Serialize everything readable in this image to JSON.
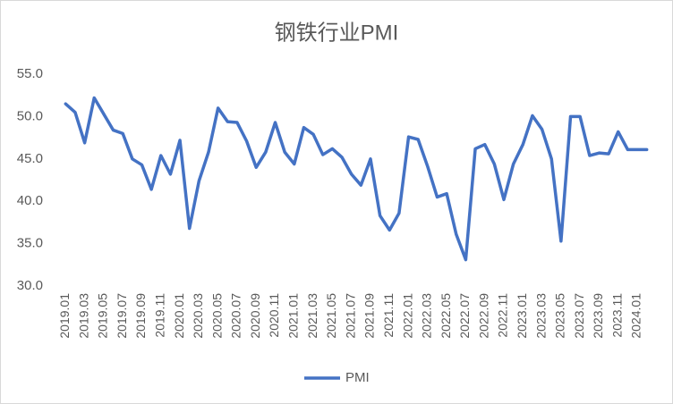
{
  "chart_data": {
    "type": "line",
    "title": "钢铁行业PMI",
    "categories": [
      "2019.01",
      null,
      "2019.03",
      null,
      "2019.05",
      null,
      "2019.07",
      null,
      "2019.09",
      null,
      "2019.11",
      null,
      "2020.01",
      null,
      "2020.03",
      null,
      "2020.05",
      null,
      "2020.07",
      null,
      "2020.09",
      null,
      "2020.11",
      null,
      "2021.01",
      null,
      "2021.03",
      null,
      "2021.05",
      null,
      "2021.07",
      null,
      "2021.09",
      null,
      "2021.11",
      null,
      "2022.01",
      null,
      "2022.03",
      null,
      "2022.05",
      null,
      "2022.07",
      null,
      "2022.09",
      null,
      "2022.11",
      null,
      "2023.01",
      null,
      "2023.03",
      null,
      "2023.05",
      null,
      "2023.07",
      null,
      "2023.09",
      null,
      "2023.11",
      null,
      "2024.01",
      null
    ],
    "series": [
      {
        "name": "PMI",
        "color": "#4472c4",
        "values": [
          51.5,
          50.5,
          46.9,
          52.2,
          50.3,
          48.4,
          48.0,
          45.0,
          44.3,
          41.4,
          45.4,
          43.2,
          47.2,
          36.8,
          42.4,
          45.8,
          51.0,
          49.4,
          49.3,
          47.1,
          44.0,
          45.8,
          49.3,
          45.8,
          44.4,
          48.7,
          47.9,
          45.5,
          46.2,
          45.2,
          43.2,
          41.9,
          45.0,
          38.3,
          36.6,
          38.6,
          47.6,
          47.3,
          44.1,
          40.5,
          40.9,
          36.1,
          33.1,
          46.2,
          46.7,
          44.4,
          40.2,
          44.4,
          46.7,
          50.1,
          48.5,
          45.0,
          35.3,
          50.0,
          50.0,
          45.4,
          45.7,
          45.6,
          48.2,
          46.1,
          46.1,
          46.1
        ]
      }
    ],
    "ylim": [
      30,
      55
    ],
    "yticks": [
      {
        "value": 30,
        "label": "30.0"
      },
      {
        "value": 35,
        "label": "35.0"
      },
      {
        "value": 40,
        "label": "40.0"
      },
      {
        "value": 45,
        "label": "45.0"
      },
      {
        "value": 50,
        "label": "50.0"
      },
      {
        "value": 55,
        "label": "55.0"
      }
    ],
    "grid": false,
    "legend": "bottom"
  }
}
